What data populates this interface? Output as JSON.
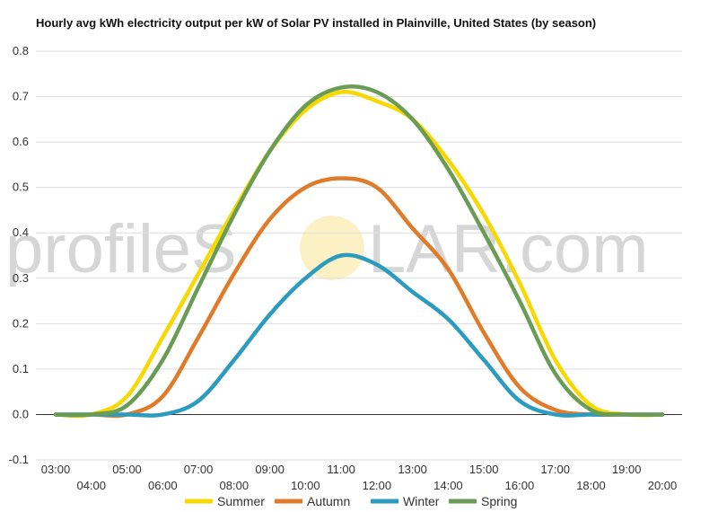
{
  "chart_data": {
    "type": "line",
    "title": "Hourly avg kWh electricity output per kW of Solar PV installed in Plainville, United States (by season)",
    "watermark": {
      "left": "profileS",
      "right": "LAR.com",
      "sun_color": "#fbf1c4"
    },
    "x": [
      "03:00",
      "04:00",
      "05:00",
      "06:00",
      "07:00",
      "08:00",
      "09:00",
      "10:00",
      "11:00",
      "12:00",
      "13:00",
      "14:00",
      "15:00",
      "16:00",
      "17:00",
      "18:00",
      "19:00",
      "20:00"
    ],
    "y_ticks": [
      "0.8",
      "0.7",
      "0.6",
      "0.5",
      "0.4",
      "0.3",
      "0.2",
      "0.1",
      "0.0",
      "-0.1"
    ],
    "ylim": [
      -0.1,
      0.8
    ],
    "grid": true,
    "legend_position": "bottom",
    "series": [
      {
        "name": "Summer",
        "color": "#f7d800",
        "values": [
          0.0,
          0.0,
          0.04,
          0.17,
          0.31,
          0.45,
          0.58,
          0.67,
          0.71,
          0.69,
          0.65,
          0.56,
          0.44,
          0.29,
          0.12,
          0.02,
          0.0,
          0.0
        ]
      },
      {
        "name": "Autumn",
        "color": "#e07b2a",
        "values": [
          0.0,
          0.0,
          0.0,
          0.04,
          0.17,
          0.31,
          0.43,
          0.5,
          0.52,
          0.5,
          0.41,
          0.32,
          0.18,
          0.06,
          0.01,
          0.0,
          0.0,
          0.0
        ]
      },
      {
        "name": "Winter",
        "color": "#2b9bbf",
        "values": [
          0.0,
          0.0,
          0.0,
          0.0,
          0.03,
          0.12,
          0.22,
          0.3,
          0.35,
          0.33,
          0.27,
          0.21,
          0.12,
          0.03,
          0.0,
          0.0,
          0.0,
          0.0
        ]
      },
      {
        "name": "Spring",
        "color": "#6a9c55",
        "values": [
          0.0,
          0.0,
          0.02,
          0.12,
          0.28,
          0.44,
          0.58,
          0.68,
          0.72,
          0.71,
          0.65,
          0.54,
          0.4,
          0.25,
          0.09,
          0.01,
          0.0,
          0.0
        ]
      }
    ]
  }
}
